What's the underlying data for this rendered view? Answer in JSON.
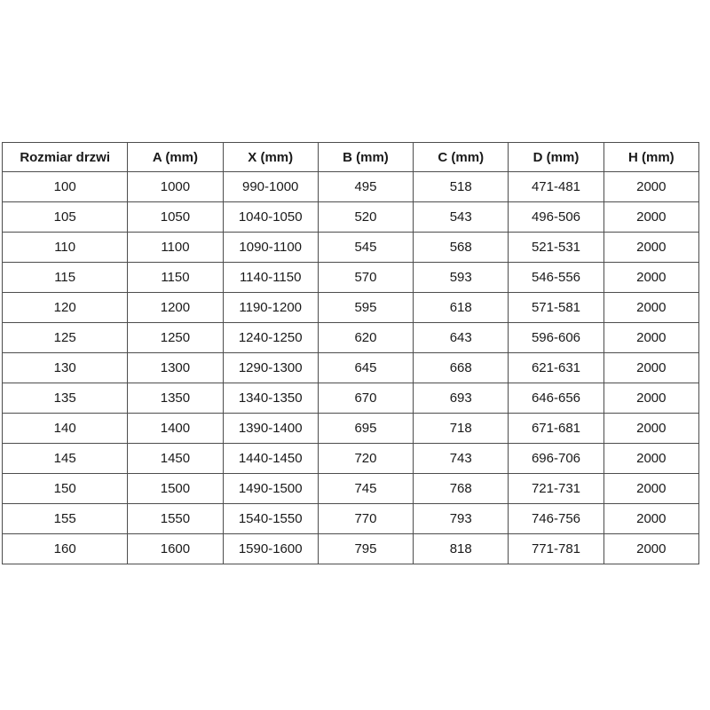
{
  "table": {
    "name": "door-size-dimensions",
    "border_color": "#4d4d4d",
    "text_color": "#1a1a1a",
    "columns": [
      "Rozmiar drzwi",
      "A (mm)",
      "X (mm)",
      "B (mm)",
      "C (mm)",
      "D (mm)",
      "H (mm)"
    ],
    "rows": [
      [
        "100",
        "1000",
        "990-1000",
        "495",
        "518",
        "471-481",
        "2000"
      ],
      [
        "105",
        "1050",
        "1040-1050",
        "520",
        "543",
        "496-506",
        "2000"
      ],
      [
        "110",
        "1100",
        "1090-1100",
        "545",
        "568",
        "521-531",
        "2000"
      ],
      [
        "115",
        "1150",
        "1140-1150",
        "570",
        "593",
        "546-556",
        "2000"
      ],
      [
        "120",
        "1200",
        "1190-1200",
        "595",
        "618",
        "571-581",
        "2000"
      ],
      [
        "125",
        "1250",
        "1240-1250",
        "620",
        "643",
        "596-606",
        "2000"
      ],
      [
        "130",
        "1300",
        "1290-1300",
        "645",
        "668",
        "621-631",
        "2000"
      ],
      [
        "135",
        "1350",
        "1340-1350",
        "670",
        "693",
        "646-656",
        "2000"
      ],
      [
        "140",
        "1400",
        "1390-1400",
        "695",
        "718",
        "671-681",
        "2000"
      ],
      [
        "145",
        "1450",
        "1440-1450",
        "720",
        "743",
        "696-706",
        "2000"
      ],
      [
        "150",
        "1500",
        "1490-1500",
        "745",
        "768",
        "721-731",
        "2000"
      ],
      [
        "155",
        "1550",
        "1540-1550",
        "770",
        "793",
        "746-756",
        "2000"
      ],
      [
        "160",
        "1600",
        "1590-1600",
        "795",
        "818",
        "771-781",
        "2000"
      ]
    ]
  }
}
